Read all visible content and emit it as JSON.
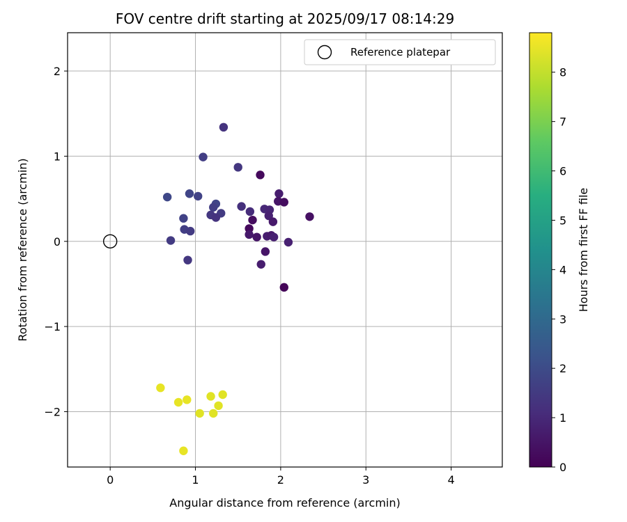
{
  "chart_data": {
    "type": "scatter",
    "title": "FOV centre drift starting at 2025/09/17 08:14:29",
    "xlabel": "Angular distance from reference (arcmin)",
    "ylabel": "Rotation from reference (arcmin)",
    "xlim": [
      -0.5,
      4.6
    ],
    "ylim": [
      -2.65,
      2.45
    ],
    "xticks": [
      0,
      1,
      2,
      3,
      4
    ],
    "xtick_labels": [
      "0",
      "1",
      "2",
      "3",
      "4"
    ],
    "yticks": [
      -2,
      -1,
      0,
      1,
      2
    ],
    "ytick_labels": [
      "−2",
      "−1",
      "0",
      "1",
      "2"
    ],
    "grid": true,
    "legend": {
      "location": "top-right",
      "label": "Reference platepar"
    },
    "reference_point": {
      "x": 0,
      "y": 0
    },
    "colorbar": {
      "label": "Hours from first FF file",
      "range": [
        0,
        8.8
      ],
      "ticks": [
        0,
        1,
        2,
        3,
        4,
        5,
        6,
        7,
        8
      ],
      "tick_labels": [
        "0",
        "1",
        "2",
        "3",
        "4",
        "5",
        "6",
        "7",
        "8"
      ],
      "colormap": "viridis"
    },
    "points": [
      {
        "x": 1.33,
        "y": 1.34,
        "h": 1.3
      },
      {
        "x": 1.09,
        "y": 0.99,
        "h": 1.6
      },
      {
        "x": 1.5,
        "y": 0.87,
        "h": 1.4
      },
      {
        "x": 1.76,
        "y": 0.78,
        "h": 0.2
      },
      {
        "x": 0.67,
        "y": 0.52,
        "h": 1.9
      },
      {
        "x": 0.93,
        "y": 0.56,
        "h": 1.8
      },
      {
        "x": 1.03,
        "y": 0.53,
        "h": 1.7
      },
      {
        "x": 1.98,
        "y": 0.56,
        "h": 0.7
      },
      {
        "x": 1.97,
        "y": 0.47,
        "h": 0.5
      },
      {
        "x": 2.04,
        "y": 0.46,
        "h": 0.3
      },
      {
        "x": 1.24,
        "y": 0.44,
        "h": 1.8
      },
      {
        "x": 1.21,
        "y": 0.4,
        "h": 1.6
      },
      {
        "x": 1.54,
        "y": 0.41,
        "h": 1.2
      },
      {
        "x": 1.81,
        "y": 0.38,
        "h": 1.0
      },
      {
        "x": 1.87,
        "y": 0.37,
        "h": 0.9
      },
      {
        "x": 1.64,
        "y": 0.35,
        "h": 1.1
      },
      {
        "x": 1.3,
        "y": 0.33,
        "h": 1.5
      },
      {
        "x": 1.18,
        "y": 0.31,
        "h": 1.4
      },
      {
        "x": 1.24,
        "y": 0.28,
        "h": 1.3
      },
      {
        "x": 1.86,
        "y": 0.3,
        "h": 0.8
      },
      {
        "x": 2.34,
        "y": 0.29,
        "h": 0.4
      },
      {
        "x": 0.86,
        "y": 0.27,
        "h": 1.7
      },
      {
        "x": 1.67,
        "y": 0.25,
        "h": 0.3
      },
      {
        "x": 1.91,
        "y": 0.23,
        "h": 0.6
      },
      {
        "x": 1.63,
        "y": 0.15,
        "h": 0.2
      },
      {
        "x": 0.87,
        "y": 0.14,
        "h": 1.6
      },
      {
        "x": 0.94,
        "y": 0.12,
        "h": 1.5
      },
      {
        "x": 1.63,
        "y": 0.08,
        "h": 0.6
      },
      {
        "x": 1.72,
        "y": 0.05,
        "h": 0.5
      },
      {
        "x": 1.84,
        "y": 0.06,
        "h": 0.7
      },
      {
        "x": 1.89,
        "y": 0.07,
        "h": 0.6
      },
      {
        "x": 1.92,
        "y": 0.05,
        "h": 0.8
      },
      {
        "x": 0.71,
        "y": 0.01,
        "h": 1.5
      },
      {
        "x": 2.09,
        "y": -0.01,
        "h": 0.8
      },
      {
        "x": 1.82,
        "y": -0.12,
        "h": 0.5
      },
      {
        "x": 0.91,
        "y": -0.22,
        "h": 1.4
      },
      {
        "x": 1.77,
        "y": -0.27,
        "h": 0.7
      },
      {
        "x": 2.04,
        "y": -0.54,
        "h": 0.1
      },
      {
        "x": 0.59,
        "y": -1.72,
        "h": 8.5
      },
      {
        "x": 1.32,
        "y": -1.8,
        "h": 8.4
      },
      {
        "x": 1.18,
        "y": -1.82,
        "h": 8.4
      },
      {
        "x": 0.9,
        "y": -1.86,
        "h": 8.5
      },
      {
        "x": 0.8,
        "y": -1.89,
        "h": 8.5
      },
      {
        "x": 1.27,
        "y": -1.93,
        "h": 8.4
      },
      {
        "x": 1.05,
        "y": -2.02,
        "h": 8.4
      },
      {
        "x": 1.21,
        "y": -2.02,
        "h": 8.4
      },
      {
        "x": 0.86,
        "y": -2.46,
        "h": 8.5
      }
    ]
  }
}
